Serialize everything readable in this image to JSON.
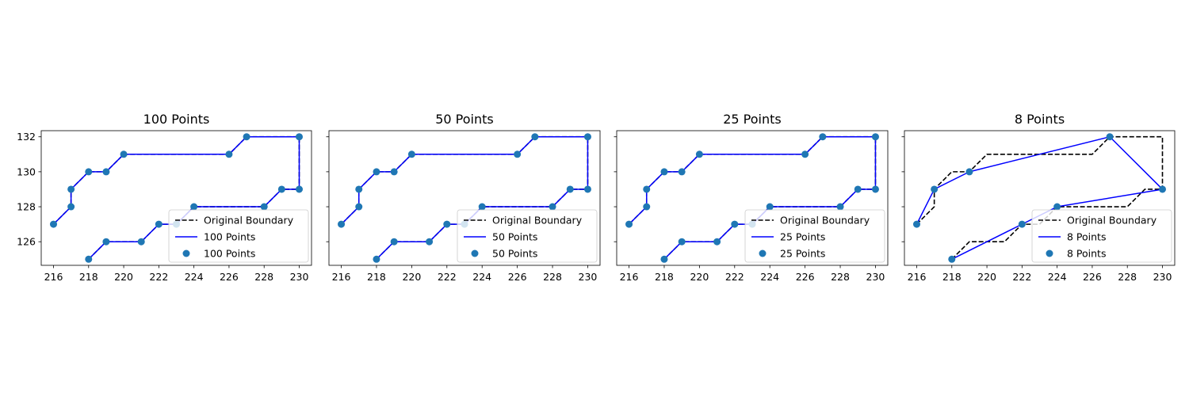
{
  "chart_data": [
    {
      "type": "line",
      "title": "100 Points",
      "xlim": [
        215.3,
        230.7
      ],
      "ylim": [
        124.65,
        132.35
      ],
      "xticks": [
        216,
        218,
        220,
        222,
        224,
        226,
        228,
        230
      ],
      "yticks": [
        126,
        128,
        130,
        132
      ],
      "legend_position": "lower-right",
      "series": [
        {
          "name": "Original Boundary",
          "kind": "line",
          "style": "dashed",
          "color": "#000000",
          "points": [
            [
              218,
              125
            ],
            [
              219,
              126
            ],
            [
              221,
              126
            ],
            [
              222,
              127
            ],
            [
              223,
              127
            ],
            [
              224,
              128
            ],
            [
              228,
              128
            ],
            [
              229,
              129
            ],
            [
              230,
              129
            ],
            [
              230,
              132
            ],
            [
              227,
              132
            ],
            [
              226,
              131
            ],
            [
              220,
              131
            ],
            [
              219,
              130
            ],
            [
              218,
              130
            ],
            [
              217,
              129
            ],
            [
              217,
              128
            ],
            [
              216,
              127
            ]
          ]
        },
        {
          "name": "100 Points",
          "kind": "line",
          "style": "solid",
          "color": "#0000ff",
          "points": [
            [
              218,
              125
            ],
            [
              219,
              126
            ],
            [
              221,
              126
            ],
            [
              222,
              127
            ],
            [
              223,
              127
            ],
            [
              224,
              128
            ],
            [
              228,
              128
            ],
            [
              229,
              129
            ],
            [
              230,
              129
            ],
            [
              230,
              132
            ],
            [
              227,
              132
            ],
            [
              226,
              131
            ],
            [
              220,
              131
            ],
            [
              219,
              130
            ],
            [
              218,
              130
            ],
            [
              217,
              129
            ],
            [
              217,
              128
            ],
            [
              216,
              127
            ]
          ]
        },
        {
          "name": "100 Points",
          "kind": "scatter",
          "color": "#1f77b4",
          "points": [
            [
              218,
              125
            ],
            [
              219,
              126
            ],
            [
              221,
              126
            ],
            [
              222,
              127
            ],
            [
              223,
              127
            ],
            [
              224,
              128
            ],
            [
              228,
              128
            ],
            [
              229,
              129
            ],
            [
              230,
              129
            ],
            [
              230,
              132
            ],
            [
              227,
              132
            ],
            [
              226,
              131
            ],
            [
              220,
              131
            ],
            [
              219,
              130
            ],
            [
              218,
              130
            ],
            [
              217,
              129
            ],
            [
              217,
              128
            ],
            [
              216,
              127
            ]
          ]
        }
      ]
    },
    {
      "type": "line",
      "title": "50 Points",
      "xlim": [
        215.3,
        230.7
      ],
      "ylim": [
        124.65,
        132.35
      ],
      "xticks": [
        216,
        218,
        220,
        222,
        224,
        226,
        228,
        230
      ],
      "yticks": [
        126,
        128,
        130,
        132
      ],
      "legend_position": "lower-right",
      "series": [
        {
          "name": "Original Boundary",
          "kind": "line",
          "style": "dashed",
          "color": "#000000",
          "points": [
            [
              218,
              125
            ],
            [
              219,
              126
            ],
            [
              221,
              126
            ],
            [
              222,
              127
            ],
            [
              223,
              127
            ],
            [
              224,
              128
            ],
            [
              228,
              128
            ],
            [
              229,
              129
            ],
            [
              230,
              129
            ],
            [
              230,
              132
            ],
            [
              227,
              132
            ],
            [
              226,
              131
            ],
            [
              220,
              131
            ],
            [
              219,
              130
            ],
            [
              218,
              130
            ],
            [
              217,
              129
            ],
            [
              217,
              128
            ],
            [
              216,
              127
            ]
          ]
        },
        {
          "name": "50 Points",
          "kind": "line",
          "style": "solid",
          "color": "#0000ff",
          "points": [
            [
              218,
              125
            ],
            [
              219,
              126
            ],
            [
              221,
              126
            ],
            [
              222,
              127
            ],
            [
              223,
              127
            ],
            [
              224,
              128
            ],
            [
              228,
              128
            ],
            [
              229,
              129
            ],
            [
              230,
              129
            ],
            [
              230,
              132
            ],
            [
              227,
              132
            ],
            [
              226,
              131
            ],
            [
              220,
              131
            ],
            [
              219,
              130
            ],
            [
              218,
              130
            ],
            [
              217,
              129
            ],
            [
              217,
              128
            ],
            [
              216,
              127
            ]
          ]
        },
        {
          "name": "50 Points",
          "kind": "scatter",
          "color": "#1f77b4",
          "points": [
            [
              218,
              125
            ],
            [
              219,
              126
            ],
            [
              221,
              126
            ],
            [
              222,
              127
            ],
            [
              223,
              127
            ],
            [
              224,
              128
            ],
            [
              228,
              128
            ],
            [
              229,
              129
            ],
            [
              230,
              129
            ],
            [
              230,
              132
            ],
            [
              227,
              132
            ],
            [
              226,
              131
            ],
            [
              220,
              131
            ],
            [
              219,
              130
            ],
            [
              218,
              130
            ],
            [
              217,
              129
            ],
            [
              217,
              128
            ],
            [
              216,
              127
            ]
          ]
        }
      ]
    },
    {
      "type": "line",
      "title": "25 Points",
      "xlim": [
        215.3,
        230.7
      ],
      "ylim": [
        124.65,
        132.35
      ],
      "xticks": [
        216,
        218,
        220,
        222,
        224,
        226,
        228,
        230
      ],
      "yticks": [
        126,
        128,
        130,
        132
      ],
      "legend_position": "lower-right",
      "series": [
        {
          "name": "Original Boundary",
          "kind": "line",
          "style": "dashed",
          "color": "#000000",
          "points": [
            [
              218,
              125
            ],
            [
              219,
              126
            ],
            [
              221,
              126
            ],
            [
              222,
              127
            ],
            [
              223,
              127
            ],
            [
              224,
              128
            ],
            [
              228,
              128
            ],
            [
              229,
              129
            ],
            [
              230,
              129
            ],
            [
              230,
              132
            ],
            [
              227,
              132
            ],
            [
              226,
              131
            ],
            [
              220,
              131
            ],
            [
              219,
              130
            ],
            [
              218,
              130
            ],
            [
              217,
              129
            ],
            [
              217,
              128
            ],
            [
              216,
              127
            ]
          ]
        },
        {
          "name": "25 Points",
          "kind": "line",
          "style": "solid",
          "color": "#0000ff",
          "points": [
            [
              218,
              125
            ],
            [
              219,
              126
            ],
            [
              221,
              126
            ],
            [
              222,
              127
            ],
            [
              223,
              127
            ],
            [
              224,
              128
            ],
            [
              228,
              128
            ],
            [
              229,
              129
            ],
            [
              230,
              129
            ],
            [
              230,
              132
            ],
            [
              227,
              132
            ],
            [
              226,
              131
            ],
            [
              220,
              131
            ],
            [
              219,
              130
            ],
            [
              218,
              130
            ],
            [
              217,
              129
            ],
            [
              217,
              128
            ],
            [
              216,
              127
            ]
          ]
        },
        {
          "name": "25 Points",
          "kind": "scatter",
          "color": "#1f77b4",
          "points": [
            [
              218,
              125
            ],
            [
              219,
              126
            ],
            [
              221,
              126
            ],
            [
              222,
              127
            ],
            [
              223,
              127
            ],
            [
              224,
              128
            ],
            [
              228,
              128
            ],
            [
              229,
              129
            ],
            [
              230,
              129
            ],
            [
              230,
              132
            ],
            [
              227,
              132
            ],
            [
              226,
              131
            ],
            [
              220,
              131
            ],
            [
              219,
              130
            ],
            [
              218,
              130
            ],
            [
              217,
              129
            ],
            [
              217,
              128
            ],
            [
              216,
              127
            ]
          ]
        }
      ]
    },
    {
      "type": "line",
      "title": "8 Points",
      "xlim": [
        215.3,
        230.7
      ],
      "ylim": [
        124.65,
        132.35
      ],
      "xticks": [
        216,
        218,
        220,
        222,
        224,
        226,
        228,
        230
      ],
      "yticks": [
        126,
        128,
        130,
        132
      ],
      "legend_position": "lower-right",
      "series": [
        {
          "name": "Original Boundary",
          "kind": "line",
          "style": "dashed",
          "color": "#000000",
          "points": [
            [
              218,
              125
            ],
            [
              219,
              126
            ],
            [
              221,
              126
            ],
            [
              222,
              127
            ],
            [
              223,
              127
            ],
            [
              224,
              128
            ],
            [
              228,
              128
            ],
            [
              229,
              129
            ],
            [
              230,
              129
            ],
            [
              230,
              132
            ],
            [
              227,
              132
            ],
            [
              226,
              131
            ],
            [
              220,
              131
            ],
            [
              219,
              130
            ],
            [
              218,
              130
            ],
            [
              217,
              129
            ],
            [
              217,
              128
            ],
            [
              216,
              127
            ]
          ]
        },
        {
          "name": "8 Points",
          "kind": "line",
          "style": "solid",
          "color": "#0000ff",
          "points": [
            [
              218,
              125
            ],
            [
              222,
              127
            ],
            [
              224,
              128
            ],
            [
              230,
              129
            ],
            [
              227,
              132
            ],
            [
              219,
              130
            ],
            [
              217,
              129
            ],
            [
              216,
              127
            ]
          ]
        },
        {
          "name": "8 Points",
          "kind": "scatter",
          "color": "#1f77b4",
          "points": [
            [
              218,
              125
            ],
            [
              222,
              127
            ],
            [
              224,
              128
            ],
            [
              230,
              129
            ],
            [
              227,
              132
            ],
            [
              219,
              130
            ],
            [
              217,
              129
            ],
            [
              216,
              127
            ]
          ]
        }
      ]
    }
  ]
}
